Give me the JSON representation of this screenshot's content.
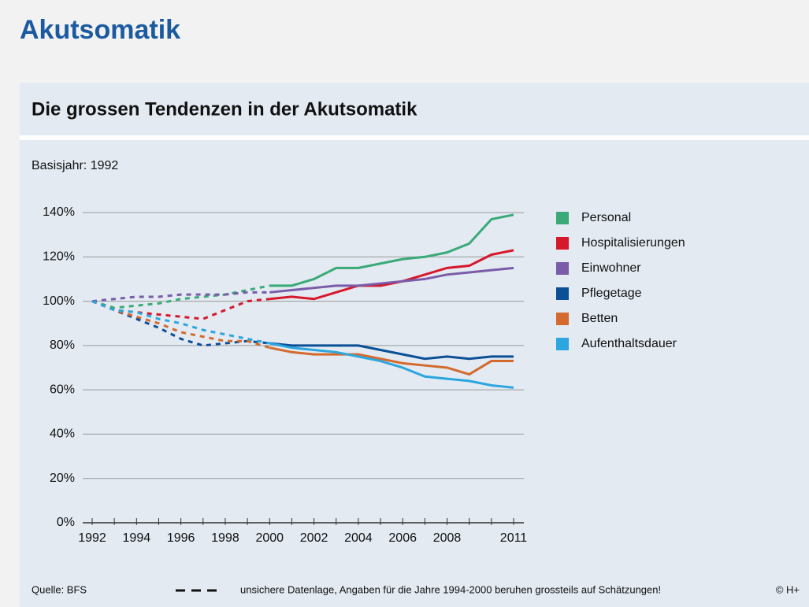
{
  "page_title": "Akutsomatik",
  "chart_data": {
    "type": "line",
    "title": "Die grossen Tendenzen in der Akutsomatik",
    "subtitle": "Basisjahr: 1992",
    "x": [
      1992,
      1993,
      1994,
      1995,
      1996,
      1997,
      1998,
      1999,
      2000,
      2001,
      2002,
      2003,
      2004,
      2005,
      2006,
      2007,
      2008,
      2009,
      2010,
      2011
    ],
    "xlim": [
      1992,
      2011
    ],
    "xticks": [
      1992,
      1994,
      1996,
      1998,
      2000,
      2002,
      2004,
      2006,
      2008,
      2011
    ],
    "ylim": [
      0,
      140
    ],
    "yticks": [
      {
        "value": 0,
        "label": "0%"
      },
      {
        "value": 20,
        "label": "20%"
      },
      {
        "value": 40,
        "label": "40%"
      },
      {
        "value": 60,
        "label": "60%"
      },
      {
        "value": 80,
        "label": "80%"
      },
      {
        "value": 100,
        "label": "100%"
      },
      {
        "value": 120,
        "label": "120%"
      },
      {
        "value": 140,
        "label": "140%"
      }
    ],
    "grid": true,
    "dashed_until": 2000,
    "legend": "right",
    "series": [
      {
        "name": "Personal",
        "color": "#3aaa78",
        "values": [
          100,
          97,
          98,
          99,
          101,
          102,
          103,
          105,
          107,
          107,
          110,
          115,
          115,
          117,
          119,
          120,
          122,
          126,
          137,
          139
        ]
      },
      {
        "name": "Hospitalisierungen",
        "color": "#d7182a",
        "values": [
          100,
          96,
          95,
          94,
          93,
          92,
          96,
          100,
          101,
          102,
          101,
          104,
          107,
          107,
          109,
          112,
          115,
          116,
          121,
          123
        ]
      },
      {
        "name": "Einwohner",
        "color": "#7a5ca8",
        "values": [
          100,
          101,
          102,
          102,
          103,
          103,
          103,
          104,
          104,
          105,
          106,
          107,
          107,
          108,
          109,
          110,
          112,
          113,
          114,
          115
        ]
      },
      {
        "name": "Pflegetage",
        "color": "#0b4f96",
        "values": [
          100,
          96,
          92,
          88,
          83,
          80,
          81,
          82,
          81,
          80,
          80,
          80,
          80,
          78,
          76,
          74,
          75,
          74,
          75,
          75
        ]
      },
      {
        "name": "Betten",
        "color": "#d46a2e",
        "values": [
          100,
          96,
          93,
          90,
          86,
          84,
          82,
          82,
          79,
          77,
          76,
          76,
          76,
          74,
          72,
          71,
          70,
          67,
          73,
          73
        ]
      },
      {
        "name": "Aufenthaltsdauer",
        "color": "#2ca6de",
        "values": [
          100,
          96,
          95,
          92,
          90,
          87,
          85,
          83,
          81,
          79,
          78,
          77,
          75,
          73,
          70,
          66,
          65,
          64,
          62,
          61
        ]
      }
    ],
    "source": "Quelle: BFS",
    "note": "unsichere Datenlage, Angaben für die Jahre 1994-2000 beruhen grossteils auf Schätzungen!",
    "copyright": "© H+"
  }
}
